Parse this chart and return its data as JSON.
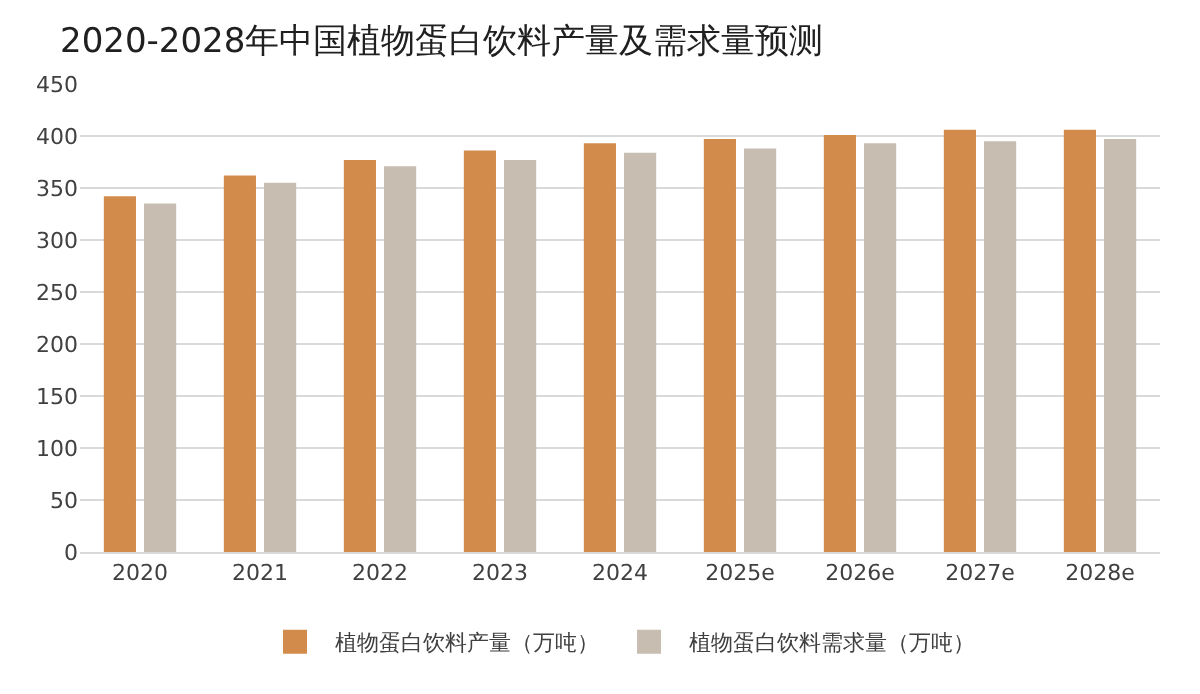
{
  "chart_data": {
    "type": "bar",
    "title": "2020-2028年中国植物蛋白饮料产量及需求量预测",
    "categories": [
      "2020",
      "2021",
      "2022",
      "2023",
      "2024",
      "2025e",
      "2026e",
      "2027e",
      "2028e"
    ],
    "series": [
      {
        "name": "植物蛋白饮料产量（万吨）",
        "color": "#d38b4c",
        "values": [
          342,
          362,
          377,
          386,
          393,
          397,
          401,
          406,
          406
        ]
      },
      {
        "name": "植物蛋白饮料需求量（万吨）",
        "color": "#c7bdb1",
        "values": [
          335,
          355,
          371,
          377,
          384,
          388,
          393,
          395,
          397
        ]
      }
    ],
    "ylim": [
      0,
      450
    ],
    "yticks": [
      0,
      50,
      100,
      150,
      200,
      250,
      300,
      350,
      400,
      450
    ],
    "grid": "y",
    "legend": "bottom"
  }
}
